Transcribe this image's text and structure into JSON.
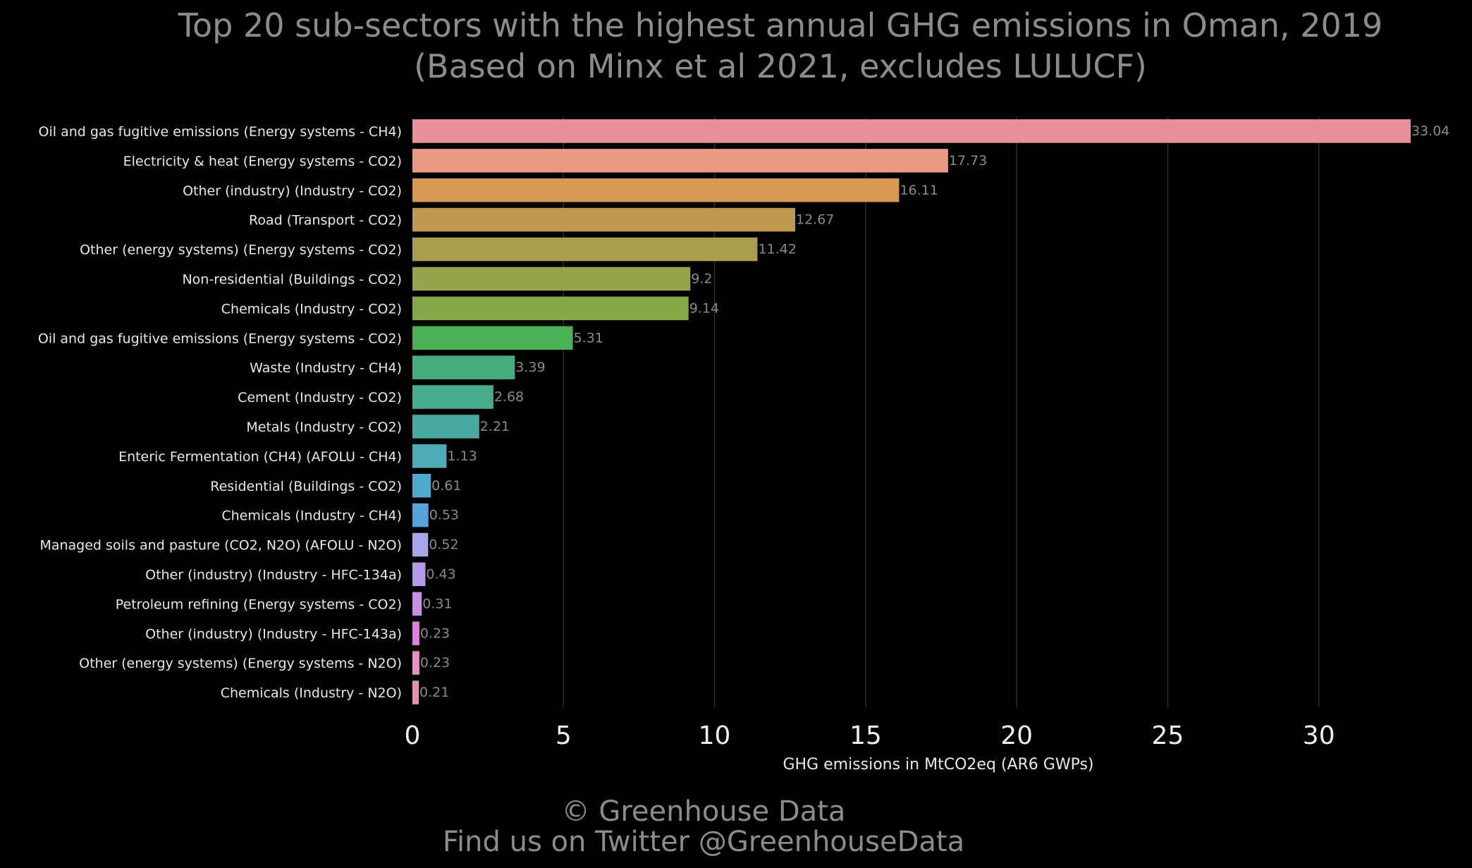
{
  "chart_data": {
    "type": "bar",
    "orientation": "horizontal",
    "title_lines": [
      "Top 20 sub-sectors with the highest annual GHG emissions in Oman, 2019",
      "(Based on Minx et al 2021, excludes LULUCF)"
    ],
    "xlabel": "GHG emissions in MtCO2eq (AR6 GWPs)",
    "ylabel": "",
    "xlim": [
      0,
      33.04
    ],
    "xticks": [
      0,
      5,
      10,
      15,
      20,
      25,
      30
    ],
    "grid": "vertical",
    "categories": [
      "Oil and gas fugitive emissions (Energy systems - CH4)",
      "Electricity & heat (Energy systems - CO2)",
      "Other (industry) (Industry - CO2)",
      "Road (Transport - CO2)",
      "Other (energy systems) (Energy systems - CO2)",
      "Non-residential (Buildings - CO2)",
      "Chemicals (Industry - CO2)",
      "Oil and gas fugitive emissions (Energy systems - CO2)",
      "Waste (Industry - CH4)",
      "Cement (Industry - CO2)",
      "Metals (Industry - CO2)",
      "Enteric Fermentation (CH4) (AFOLU - CH4)",
      "Residential (Buildings - CO2)",
      "Chemicals (Industry - CH4)",
      "Managed soils and pasture (CO2, N2O) (AFOLU - N2O)",
      "Other (industry) (Industry - HFC-134a)",
      "Petroleum refining (Energy systems - CO2)",
      "Other (industry) (Industry - HFC-143a)",
      "Other (energy systems) (Energy systems - N2O)",
      "Chemicals (Industry - N2O)"
    ],
    "values": [
      33.04,
      17.73,
      16.11,
      12.67,
      11.42,
      9.2,
      9.14,
      5.31,
      3.39,
      2.68,
      2.21,
      1.13,
      0.61,
      0.53,
      0.52,
      0.43,
      0.31,
      0.23,
      0.23,
      0.21
    ],
    "value_labels": [
      "33.04",
      "17.73",
      "16.11",
      "12.67",
      "11.42",
      "9.2",
      "9.14",
      "5.31",
      "3.39",
      "2.68",
      "2.21",
      "1.13",
      "0.61",
      "0.53",
      "0.52",
      "0.43",
      "0.31",
      "0.23",
      "0.23",
      "0.21"
    ],
    "colors": [
      "#e8909c",
      "#e89a84",
      "#d99852",
      "#c09a50",
      "#a79f4e",
      "#95a34c",
      "#85a84a",
      "#4bb055",
      "#47ad7f",
      "#48ad8f",
      "#4aaaa2",
      "#4eabb8",
      "#51a9cf",
      "#56a4dc",
      "#a5a8e8",
      "#b69ce8",
      "#c98fe6",
      "#e17fdc",
      "#e88fc6",
      "#ea90b0"
    ]
  },
  "footer": {
    "copyright": "© Greenhouse Data",
    "twitter": "Find us on Twitter @GreenhouseData"
  }
}
